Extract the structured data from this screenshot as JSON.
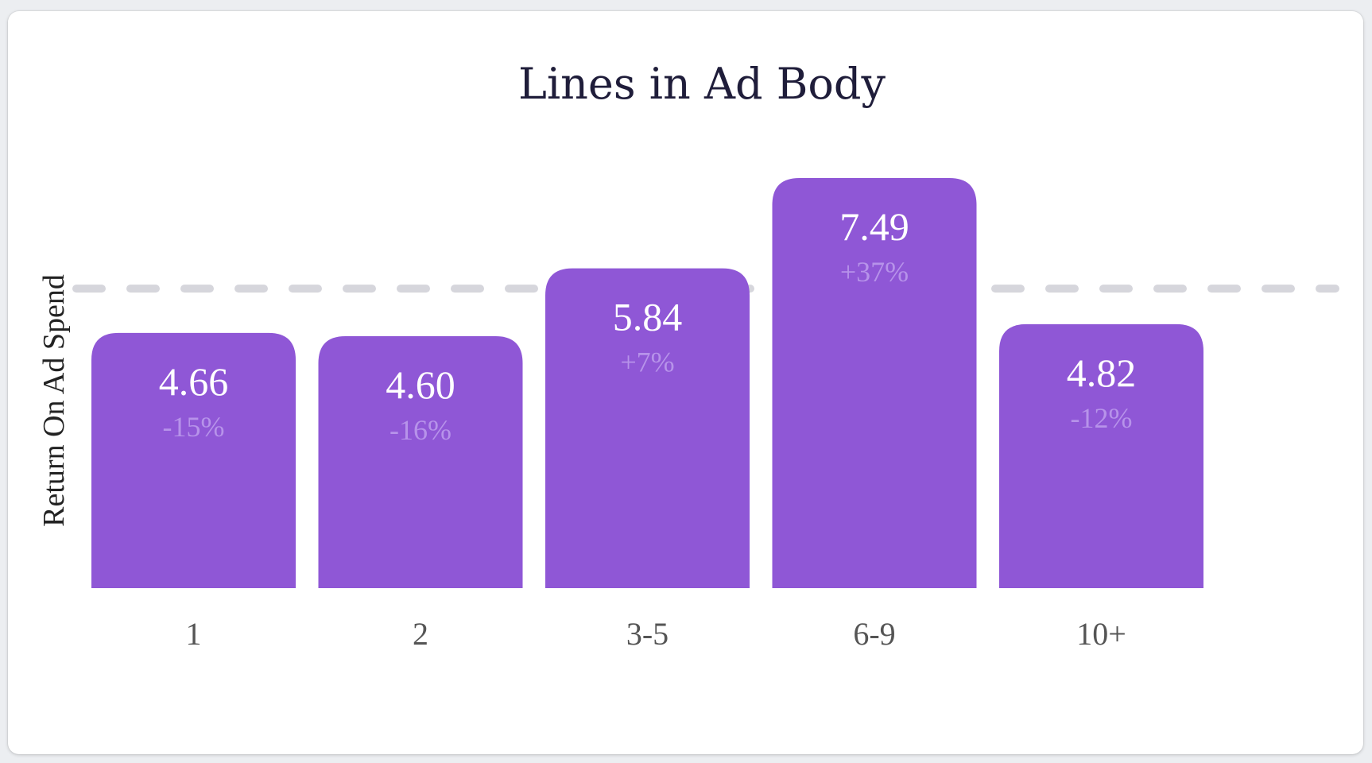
{
  "chart_data": {
    "type": "bar",
    "title": "Lines in Ad Body",
    "xlabel": "",
    "ylabel": "Return On Ad Spend",
    "categories": [
      "1",
      "2",
      "3-5",
      "6-9",
      "10+"
    ],
    "values": [
      4.66,
      4.6,
      5.84,
      7.49,
      4.82
    ],
    "value_labels": [
      "4.66",
      "4.60",
      "5.84",
      "7.49",
      "4.82"
    ],
    "change_labels": [
      "-15%",
      "-16%",
      "+7%",
      "+37%",
      "-12%"
    ],
    "reference_line": {
      "value": 5.47,
      "style": "dashed"
    },
    "ylim": [
      0,
      8.2
    ],
    "grid": false,
    "legend": "none"
  },
  "colors": {
    "bar": "#8f57d6",
    "change_text": "#b793ea",
    "reference_line": "#d6d6dc",
    "card_background": "#ffffff",
    "page_background": "#eceef1"
  }
}
